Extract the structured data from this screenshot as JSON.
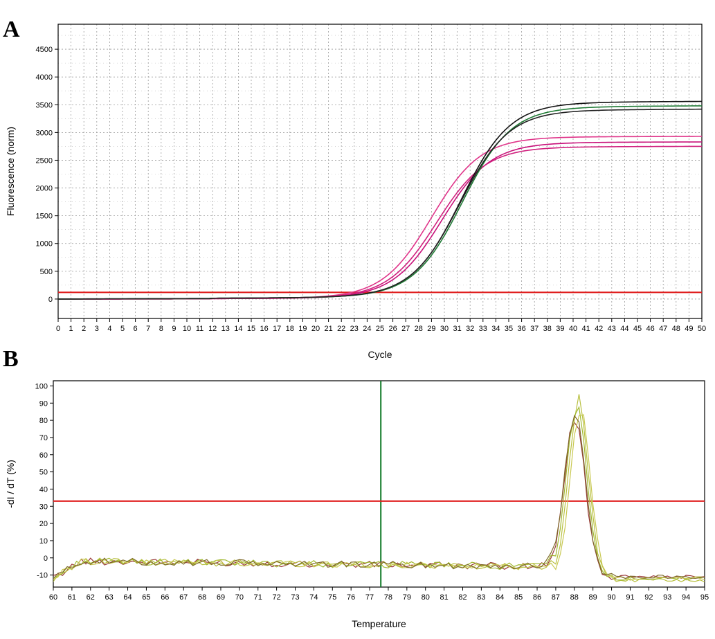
{
  "figure": {
    "panel_a_label": "A",
    "panel_b_label": "B"
  },
  "chart_data": [
    {
      "type": "line",
      "panel": "A",
      "title": "",
      "xlabel": "Cycle",
      "ylabel": "Fluorescence (norm)",
      "xlim": [
        0,
        50
      ],
      "ylim": [
        -350,
        4950
      ],
      "x_ticks": [
        0,
        1,
        2,
        3,
        4,
        5,
        6,
        7,
        8,
        9,
        10,
        11,
        12,
        13,
        14,
        15,
        16,
        17,
        18,
        19,
        20,
        21,
        22,
        23,
        24,
        25,
        26,
        27,
        28,
        29,
        30,
        31,
        32,
        33,
        34,
        35,
        36,
        37,
        38,
        39,
        40,
        41,
        42,
        43,
        44,
        45,
        46,
        47,
        48,
        49,
        50
      ],
      "y_ticks": [
        0,
        500,
        1000,
        1500,
        2000,
        2500,
        3000,
        3500,
        4000,
        4500
      ],
      "grid": true,
      "threshold": {
        "value": 120,
        "color": "#e02020"
      },
      "series": [
        {
          "color": "#e0358a",
          "baseline": 0,
          "plateau": 2900,
          "midpoint": 29.0,
          "slope": 1.9
        },
        {
          "color": "#c8107a",
          "baseline": 0,
          "plateau": 2800,
          "midpoint": 29.8,
          "slope": 1.9
        },
        {
          "color": "#d0207e",
          "baseline": 0,
          "plateau": 2720,
          "midpoint": 29.4,
          "slope": 1.9
        },
        {
          "color": "#111111",
          "baseline": 0,
          "plateau": 3500,
          "midpoint": 31.3,
          "slope": 1.9
        },
        {
          "color": "#1e7a34",
          "baseline": 0,
          "plateau": 3420,
          "midpoint": 31.4,
          "slope": 1.9
        },
        {
          "color": "#222222",
          "baseline": 0,
          "plateau": 3360,
          "midpoint": 31.2,
          "slope": 1.9
        }
      ]
    },
    {
      "type": "line",
      "panel": "B",
      "title": "",
      "xlabel": "Temperature",
      "ylabel": "-dI / dT (%)",
      "xlim": [
        60,
        95
      ],
      "ylim": [
        -17,
        103
      ],
      "x_ticks": [
        60,
        61,
        62,
        63,
        64,
        65,
        66,
        67,
        68,
        69,
        70,
        71,
        72,
        73,
        74,
        75,
        76,
        77,
        78,
        79,
        80,
        81,
        82,
        83,
        84,
        85,
        86,
        87,
        88,
        89,
        90,
        91,
        92,
        93,
        94,
        95
      ],
      "y_ticks": [
        -10,
        0,
        10,
        20,
        30,
        40,
        50,
        60,
        70,
        80,
        90,
        100
      ],
      "grid": false,
      "threshold": {
        "value": 33,
        "color": "#e02020"
      },
      "vertical_marker": {
        "value": 77.6,
        "color": "#127a28"
      },
      "series": [
        {
          "color": "#9a3a3a",
          "peak_x": 88.0,
          "peak_y": 91,
          "width": 0.62,
          "tail": -11,
          "seed": 1
        },
        {
          "color": "#b8c040",
          "peak_x": 88.2,
          "peak_y": 100,
          "width": 0.6,
          "tail": -13,
          "seed": 2
        },
        {
          "color": "#a0b830",
          "peak_x": 88.1,
          "peak_y": 98,
          "width": 0.62,
          "tail": -12,
          "seed": 3
        },
        {
          "color": "#c8c850",
          "peak_x": 88.3,
          "peak_y": 96,
          "width": 0.6,
          "tail": -12,
          "seed": 4
        },
        {
          "color": "#7e6a2a",
          "peak_x": 88.0,
          "peak_y": 93,
          "width": 0.64,
          "tail": -11,
          "seed": 5
        }
      ]
    }
  ]
}
